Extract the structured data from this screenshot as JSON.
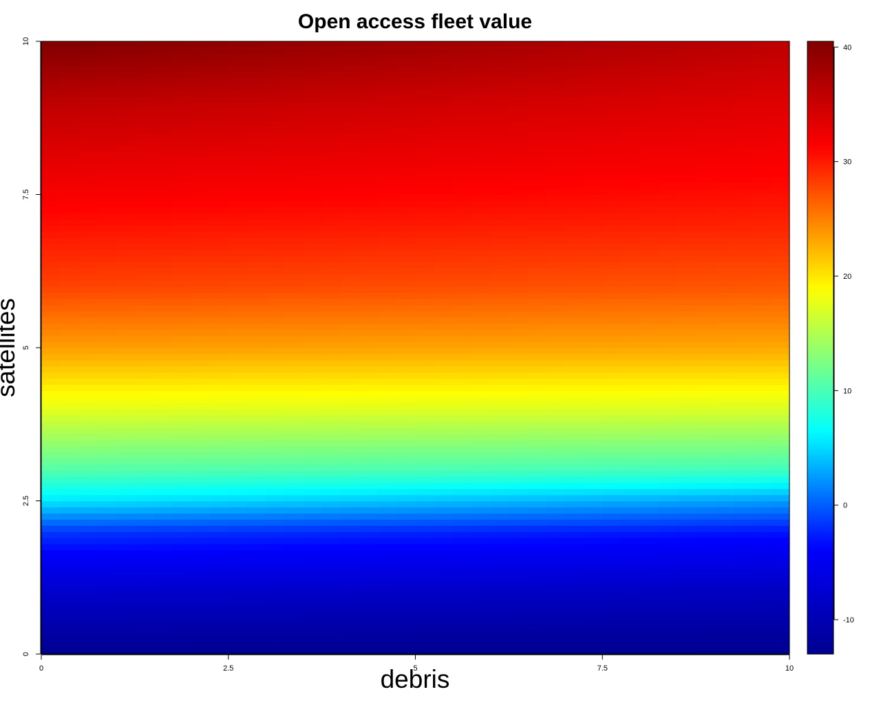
{
  "chart_data": {
    "type": "heatmap",
    "title": "Open access fleet value",
    "xlabel": "debris",
    "ylabel": "satellites",
    "xlim": [
      0,
      10
    ],
    "ylim": [
      0,
      10
    ],
    "x_ticks": [
      0,
      2.5,
      5,
      7.5,
      10
    ],
    "y_ticks": [
      0,
      2.5,
      5,
      7.5,
      10
    ],
    "x_tick_labels": [
      "0",
      "2.5",
      "5",
      "7.5",
      "10"
    ],
    "y_tick_labels": [
      "0",
      "2.5",
      "5",
      "7.5",
      "10"
    ],
    "grid": false,
    "colorbar": {
      "position": "right",
      "range": [
        -13,
        40.5
      ],
      "ticks": [
        -10,
        0,
        10,
        20,
        30,
        40
      ],
      "tick_labels": [
        "-10",
        "0",
        "10",
        "20",
        "30",
        "40"
      ],
      "colormap": "jet",
      "colors": [
        "#00008F",
        "#0000FF",
        "#00FFFF",
        "#FFFF00",
        "#FF0000",
        "#800000"
      ]
    },
    "value_profile": {
      "satellites": [
        0,
        1,
        2,
        2.5,
        3,
        4,
        5,
        6,
        7,
        8,
        9,
        10
      ],
      "value_at_debris_0": [
        -13,
        -8,
        -1.5,
        5.5,
        10.5,
        17.5,
        23.5,
        28,
        30.5,
        33,
        36,
        40.5
      ],
      "value_at_debris_10": [
        -13,
        -9,
        -3,
        2.5,
        9.5,
        17,
        23,
        27,
        29.5,
        31.5,
        33.5,
        36
      ]
    }
  }
}
